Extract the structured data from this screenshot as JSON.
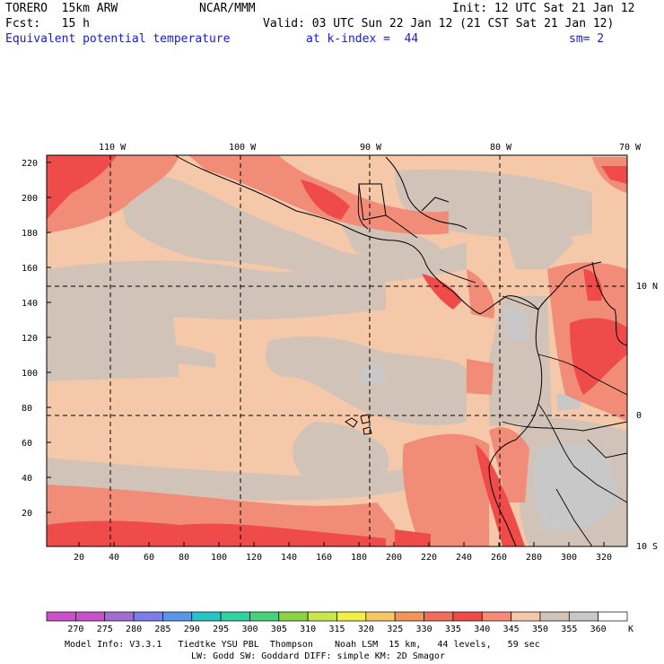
{
  "header": {
    "model": "TORERO  15km ARW",
    "org": "NCAR/MMM",
    "init": "Init: 12 UTC Sat 21 Jan 12",
    "fcst": "Fcst:   15 h",
    "valid": "Valid: 03 UTC Sun 22 Jan 12 (21 CST Sat 21 Jan 12)",
    "field": "Equivalent potential temperature",
    "level": "at k-index =  44",
    "smooth": "sm= 2"
  },
  "map": {
    "top_longitude_labels": [
      "110 W",
      "100 W",
      "90 W",
      "80 W",
      "70 W"
    ],
    "right_latitude_labels": [
      "10 N",
      "0",
      "10 S"
    ],
    "y_grid_ticks": [
      "220",
      "200",
      "180",
      "160",
      "140",
      "120",
      "100",
      "80",
      "60",
      "40",
      "20"
    ],
    "x_grid_ticks": [
      "20",
      "40",
      "60",
      "80",
      "100",
      "120",
      "140",
      "160",
      "180",
      "200",
      "220",
      "240",
      "260",
      "280",
      "300",
      "320"
    ]
  },
  "colorbar": {
    "labels": [
      "270",
      "275",
      "280",
      "285",
      "290",
      "295",
      "300",
      "305",
      "310",
      "315",
      "320",
      "325",
      "330",
      "335",
      "340",
      "345",
      "350",
      "355",
      "360"
    ],
    "unit": "K",
    "colors": [
      "#c850c8",
      "#a06ed2",
      "#7d7de6",
      "#5a96e6",
      "#28c3c3",
      "#32d2a0",
      "#46d278",
      "#8cd246",
      "#c8e650",
      "#f0f046",
      "#f5c864",
      "#f0965a",
      "#f06e5a",
      "#f04b4b",
      "#f08c78",
      "#f5c8aa",
      "#d2c3b9",
      "#c8c8c8",
      "#ffffff"
    ]
  },
  "footer": {
    "line1": "Model Info: V3.3.1   Tiedtke YSU PBL  Thompson    Noah LSM  15 km,   44 levels,   59 sec",
    "line2": "LW: Godd SW: Goddard DIFF: simple KM: 2D Smagor"
  }
}
